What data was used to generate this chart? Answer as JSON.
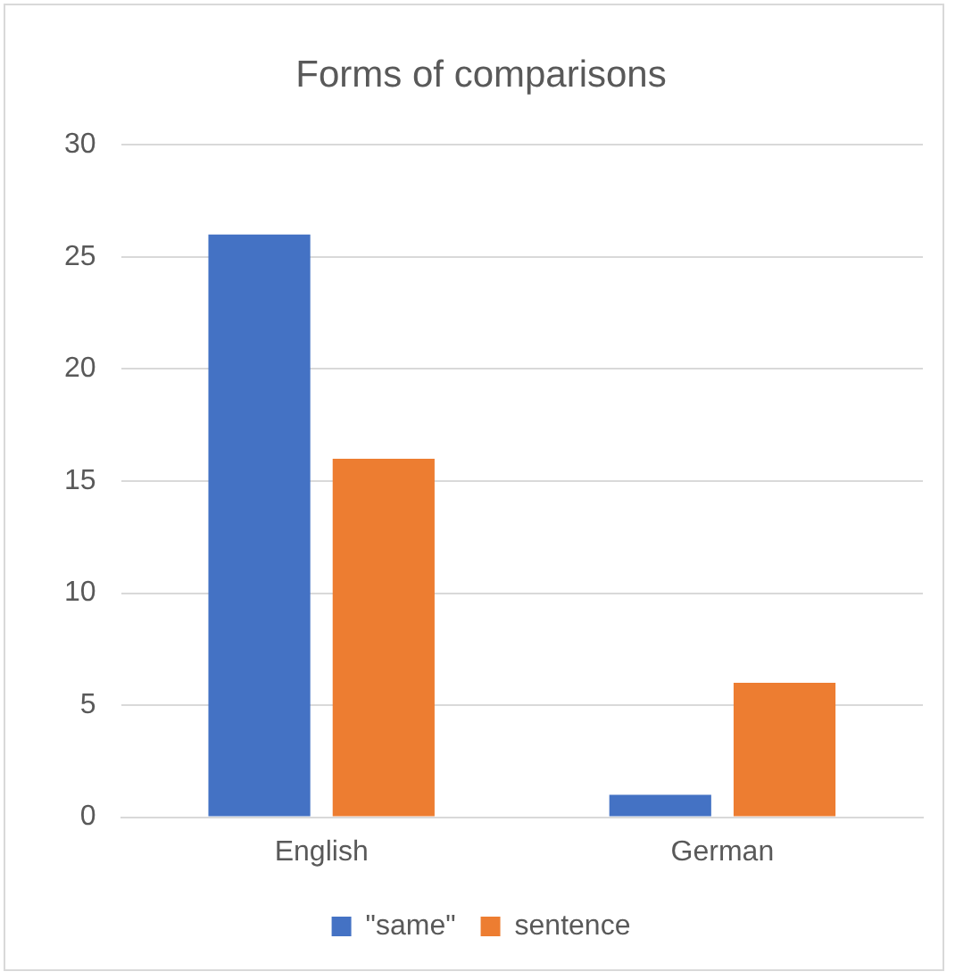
{
  "chart_data": {
    "type": "bar",
    "title": "Forms of comparisons",
    "categories": [
      "English",
      "German"
    ],
    "series": [
      {
        "name": "\"same\"",
        "color": "#4472c4",
        "values": [
          26,
          1
        ]
      },
      {
        "name": "sentence",
        "color": "#ed7d31",
        "values": [
          16,
          6
        ]
      }
    ],
    "ylim": [
      0,
      30
    ],
    "yticks": [
      0,
      5,
      10,
      15,
      20,
      25,
      30
    ],
    "grid": "y",
    "legend": "bottom"
  }
}
